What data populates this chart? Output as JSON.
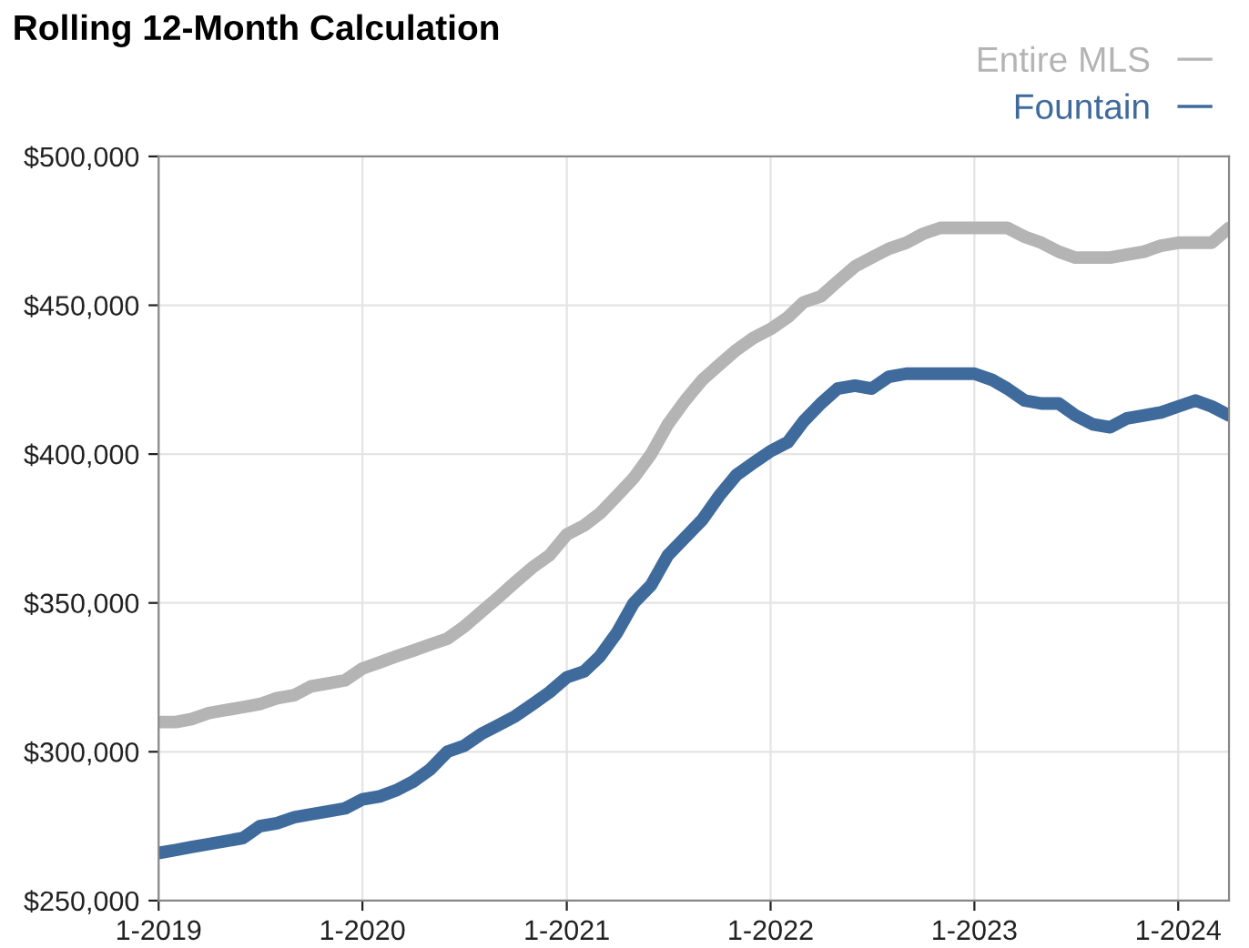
{
  "chart_data": {
    "type": "line",
    "title": "Rolling 12-Month Calculation",
    "x": [
      "2019-01",
      "2019-02",
      "2019-03",
      "2019-04",
      "2019-05",
      "2019-06",
      "2019-07",
      "2019-08",
      "2019-09",
      "2019-10",
      "2019-11",
      "2019-12",
      "2020-01",
      "2020-02",
      "2020-03",
      "2020-04",
      "2020-05",
      "2020-06",
      "2020-07",
      "2020-08",
      "2020-09",
      "2020-10",
      "2020-11",
      "2020-12",
      "2021-01",
      "2021-02",
      "2021-03",
      "2021-04",
      "2021-05",
      "2021-06",
      "2021-07",
      "2021-08",
      "2021-09",
      "2021-10",
      "2021-11",
      "2021-12",
      "2022-01",
      "2022-02",
      "2022-03",
      "2022-04",
      "2022-05",
      "2022-06",
      "2022-07",
      "2022-08",
      "2022-09",
      "2022-10",
      "2022-11",
      "2022-12",
      "2023-01",
      "2023-02",
      "2023-03",
      "2023-04",
      "2023-05",
      "2023-06",
      "2023-07",
      "2023-08",
      "2023-09",
      "2023-10",
      "2023-11",
      "2023-12",
      "2024-01",
      "2024-02",
      "2024-03",
      "2024-04"
    ],
    "series": [
      {
        "name": "Entire MLS",
        "color": "#b4b4b4",
        "values": [
          310000,
          310000,
          311000,
          313000,
          314000,
          315000,
          316000,
          318000,
          319000,
          322000,
          323000,
          324000,
          328000,
          330000,
          332000,
          334000,
          336000,
          338000,
          342000,
          347000,
          352000,
          357000,
          362000,
          366000,
          373000,
          376000,
          380000,
          386000,
          392000,
          400000,
          410000,
          418000,
          425000,
          430000,
          435000,
          439000,
          442000,
          446000,
          451000,
          453000,
          458000,
          463000,
          466000,
          469000,
          471000,
          474000,
          476000,
          476000,
          476000,
          476000,
          476000,
          473000,
          471000,
          468000,
          466000,
          466000,
          466000,
          467000,
          468000,
          470000,
          471000,
          471000,
          471000,
          476000
        ]
      },
      {
        "name": "Fountain",
        "color": "#3f6a9c",
        "values": [
          266000,
          267000,
          268000,
          269000,
          270000,
          271000,
          275000,
          276000,
          278000,
          279000,
          280000,
          281000,
          284000,
          285000,
          287000,
          290000,
          294000,
          300000,
          302000,
          306000,
          309000,
          312000,
          316000,
          320000,
          325000,
          327000,
          332000,
          340000,
          350000,
          356000,
          366000,
          372000,
          378000,
          386000,
          393000,
          397000,
          401000,
          404000,
          411000,
          417000,
          422000,
          423000,
          422000,
          426000,
          427000,
          427000,
          427000,
          427000,
          427000,
          425000,
          422000,
          418000,
          417000,
          417000,
          413000,
          410000,
          409000,
          412000,
          413000,
          414000,
          416000,
          418000,
          416000,
          413000
        ]
      }
    ],
    "xlim": [
      "2019-01",
      "2024-04"
    ],
    "xticks": [
      {
        "value": "2019-01",
        "label": "1-2019"
      },
      {
        "value": "2020-01",
        "label": "1-2020"
      },
      {
        "value": "2021-01",
        "label": "1-2021"
      },
      {
        "value": "2022-01",
        "label": "1-2022"
      },
      {
        "value": "2023-01",
        "label": "1-2023"
      },
      {
        "value": "2024-01",
        "label": "1-2024"
      }
    ],
    "ylim": [
      250000,
      500000
    ],
    "yticks": [
      {
        "value": 250000,
        "label": "$250,000"
      },
      {
        "value": 300000,
        "label": "$300,000"
      },
      {
        "value": 350000,
        "label": "$350,000"
      },
      {
        "value": 400000,
        "label": "$400,000"
      },
      {
        "value": 450000,
        "label": "$450,000"
      },
      {
        "value": 500000,
        "label": "$500,000"
      }
    ],
    "grid": true,
    "legend": "top right",
    "line_style": "solid"
  }
}
